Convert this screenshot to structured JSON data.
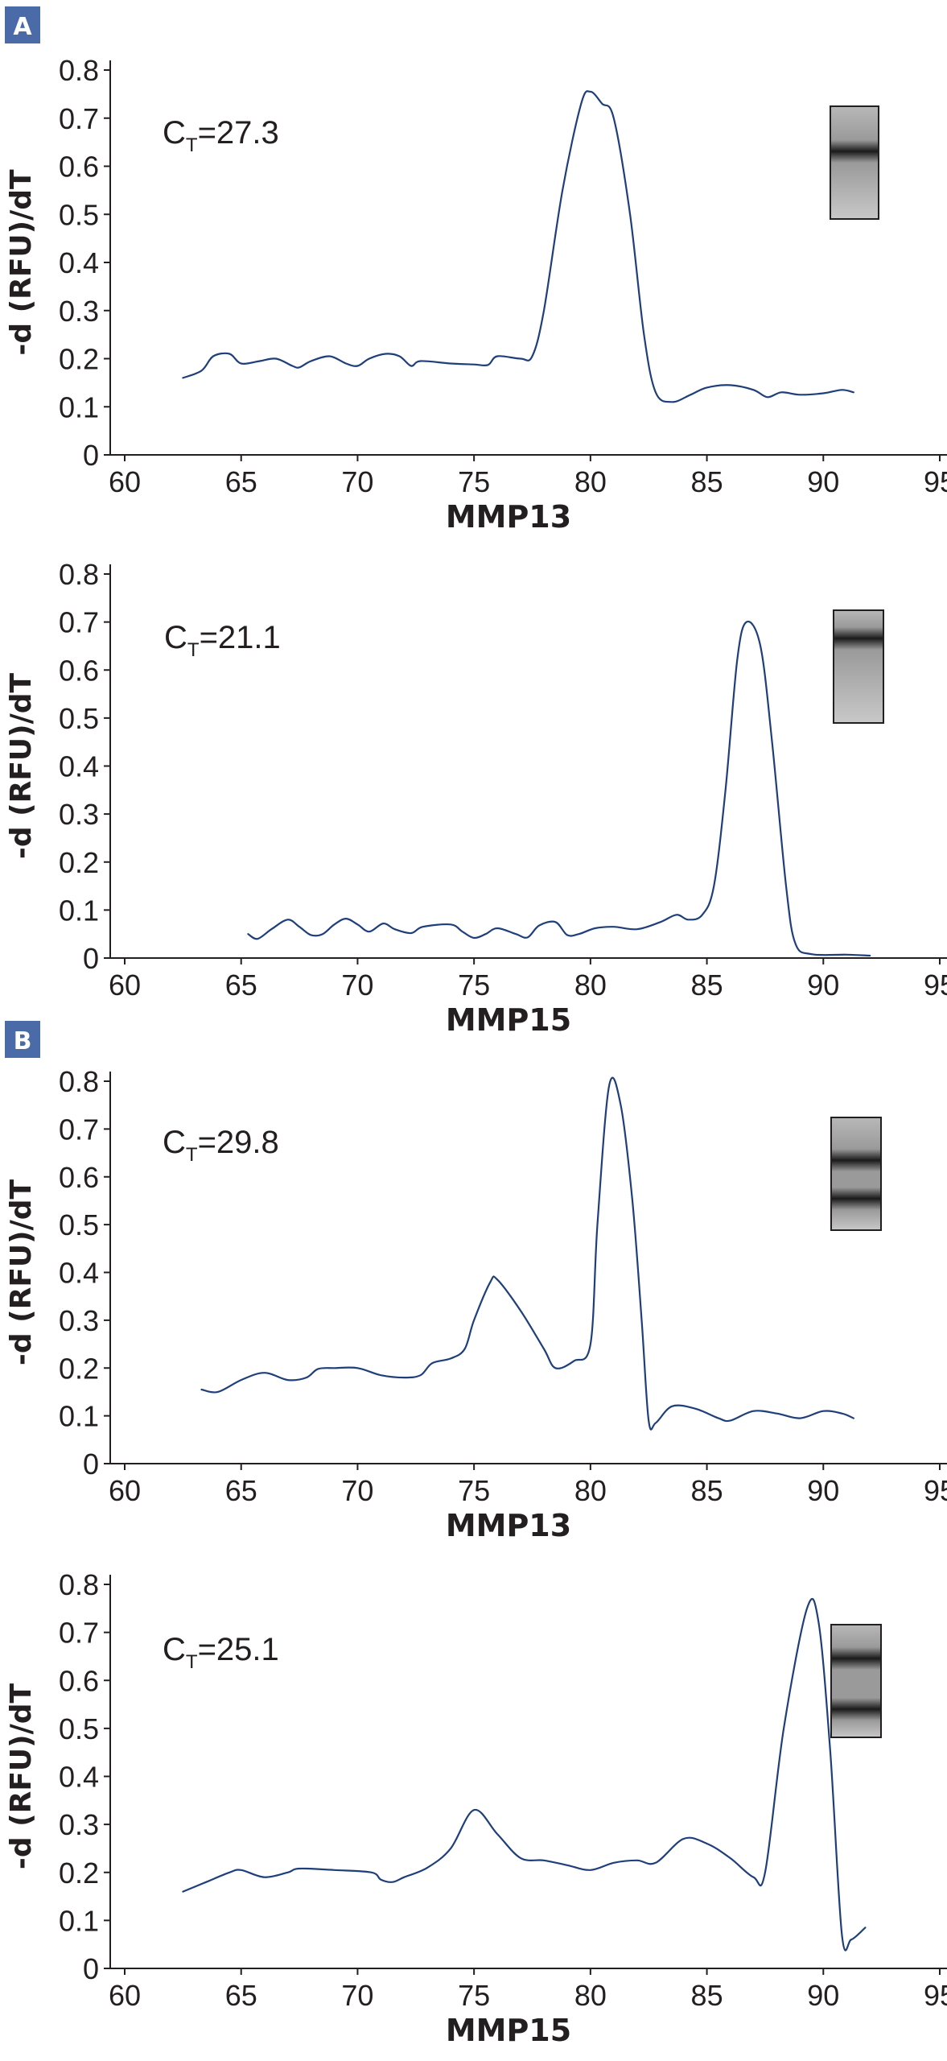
{
  "colors": {
    "curve": "#1f3f7a",
    "panel_label_bg": "#4a6aa8",
    "axis": "#231f20"
  },
  "chart_data": [
    {
      "type": "line",
      "panel": "A",
      "ylabel": "-d (RFU)/dT",
      "xlabel": "MMP13",
      "ct_label": {
        "main": "C",
        "sub": "T",
        "rest": "=27.3"
      },
      "xlim": [
        60,
        95
      ],
      "ylim": [
        0,
        0.8
      ],
      "xticks": [
        60,
        65,
        70,
        75,
        80,
        85,
        90,
        95
      ],
      "yticks": [
        0,
        0.1,
        0.2,
        0.3,
        0.4,
        0.5,
        0.6,
        0.7,
        0.8
      ],
      "gel_bands": [
        0.4
      ],
      "series": [
        {
          "points": [
            [
              62.5,
              0.16
            ],
            [
              63.3,
              0.175
            ],
            [
              63.8,
              0.205
            ],
            [
              64.5,
              0.21
            ],
            [
              65,
              0.19
            ],
            [
              65.8,
              0.195
            ],
            [
              66.5,
              0.2
            ],
            [
              67.2,
              0.185
            ],
            [
              67.5,
              0.182
            ],
            [
              68,
              0.195
            ],
            [
              68.8,
              0.205
            ],
            [
              69.5,
              0.19
            ],
            [
              70,
              0.185
            ],
            [
              70.5,
              0.2
            ],
            [
              71.2,
              0.21
            ],
            [
              71.8,
              0.205
            ],
            [
              72.3,
              0.185
            ],
            [
              72.7,
              0.195
            ],
            [
              74,
              0.19
            ],
            [
              75,
              0.188
            ],
            [
              75.6,
              0.187
            ],
            [
              76,
              0.205
            ],
            [
              77,
              0.2
            ],
            [
              77.5,
              0.205
            ],
            [
              78,
              0.3
            ],
            [
              78.8,
              0.55
            ],
            [
              79.6,
              0.73
            ],
            [
              80,
              0.755
            ],
            [
              80.5,
              0.73
            ],
            [
              81,
              0.7
            ],
            [
              81.7,
              0.5
            ],
            [
              82.3,
              0.25
            ],
            [
              82.8,
              0.13
            ],
            [
              83.5,
              0.11
            ],
            [
              84.3,
              0.125
            ],
            [
              85,
              0.14
            ],
            [
              86,
              0.145
            ],
            [
              87,
              0.135
            ],
            [
              87.6,
              0.12
            ],
            [
              88.2,
              0.13
            ],
            [
              89,
              0.125
            ],
            [
              90,
              0.128
            ],
            [
              90.8,
              0.135
            ],
            [
              91.3,
              0.13
            ]
          ]
        }
      ]
    },
    {
      "type": "line",
      "panel": "",
      "ylabel": "-d (RFU)/dT",
      "xlabel": "MMP15",
      "ct_label": {
        "main": "C",
        "sub": "T",
        "rest": "=21.1"
      },
      "xlim": [
        60,
        95
      ],
      "ylim": [
        0,
        0.8
      ],
      "xticks": [
        60,
        65,
        70,
        75,
        80,
        85,
        90,
        95
      ],
      "yticks": [
        0,
        0.1,
        0.2,
        0.3,
        0.4,
        0.5,
        0.6,
        0.7,
        0.8
      ],
      "gel_bands": [
        0.25
      ],
      "series": [
        {
          "points": [
            [
              65.3,
              0.05
            ],
            [
              65.7,
              0.04
            ],
            [
              66.3,
              0.06
            ],
            [
              67,
              0.08
            ],
            [
              67.5,
              0.065
            ],
            [
              68,
              0.048
            ],
            [
              68.5,
              0.05
            ],
            [
              69,
              0.07
            ],
            [
              69.5,
              0.082
            ],
            [
              70,
              0.07
            ],
            [
              70.5,
              0.055
            ],
            [
              71.1,
              0.072
            ],
            [
              71.6,
              0.06
            ],
            [
              72.3,
              0.052
            ],
            [
              72.8,
              0.065
            ],
            [
              74,
              0.07
            ],
            [
              74.5,
              0.055
            ],
            [
              75,
              0.042
            ],
            [
              75.5,
              0.05
            ],
            [
              76,
              0.062
            ],
            [
              76.8,
              0.05
            ],
            [
              77.3,
              0.043
            ],
            [
              77.8,
              0.068
            ],
            [
              78.5,
              0.075
            ],
            [
              79,
              0.048
            ],
            [
              79.5,
              0.05
            ],
            [
              80.2,
              0.062
            ],
            [
              81,
              0.065
            ],
            [
              82,
              0.06
            ],
            [
              83,
              0.075
            ],
            [
              83.7,
              0.09
            ],
            [
              84.2,
              0.08
            ],
            [
              84.8,
              0.09
            ],
            [
              85.3,
              0.15
            ],
            [
              85.8,
              0.35
            ],
            [
              86.3,
              0.62
            ],
            [
              86.7,
              0.7
            ],
            [
              87.3,
              0.65
            ],
            [
              87.8,
              0.45
            ],
            [
              88.4,
              0.15
            ],
            [
              88.8,
              0.03
            ],
            [
              89.5,
              0.008
            ],
            [
              91,
              0.007
            ],
            [
              92,
              0.005
            ]
          ]
        }
      ]
    },
    {
      "type": "line",
      "panel": "B",
      "ylabel": "-d (RFU)/dT",
      "xlabel": "MMP13",
      "ct_label": {
        "main": "C",
        "sub": "T",
        "rest": "=29.8"
      },
      "xlim": [
        60,
        95
      ],
      "ylim": [
        0,
        0.8
      ],
      "xticks": [
        60,
        65,
        70,
        75,
        80,
        85,
        90,
        95
      ],
      "yticks": [
        0,
        0.1,
        0.2,
        0.3,
        0.4,
        0.5,
        0.6,
        0.7,
        0.8
      ],
      "gel_bands": [
        0.38,
        0.72
      ],
      "series": [
        {
          "points": [
            [
              63.3,
              0.155
            ],
            [
              64,
              0.15
            ],
            [
              65,
              0.175
            ],
            [
              66,
              0.19
            ],
            [
              67,
              0.175
            ],
            [
              67.8,
              0.18
            ],
            [
              68.3,
              0.198
            ],
            [
              69,
              0.2
            ],
            [
              70,
              0.2
            ],
            [
              71,
              0.185
            ],
            [
              72,
              0.18
            ],
            [
              72.7,
              0.185
            ],
            [
              73.2,
              0.21
            ],
            [
              74,
              0.22
            ],
            [
              74.6,
              0.24
            ],
            [
              75,
              0.3
            ],
            [
              75.7,
              0.38
            ],
            [
              76,
              0.385
            ],
            [
              77,
              0.32
            ],
            [
              78,
              0.24
            ],
            [
              78.5,
              0.2
            ],
            [
              79.3,
              0.215
            ],
            [
              80,
              0.25
            ],
            [
              80.3,
              0.5
            ],
            [
              80.8,
              0.79
            ],
            [
              81.3,
              0.75
            ],
            [
              81.8,
              0.55
            ],
            [
              82.2,
              0.3
            ],
            [
              82.5,
              0.09
            ],
            [
              82.8,
              0.085
            ],
            [
              83.5,
              0.12
            ],
            [
              84.5,
              0.115
            ],
            [
              85.5,
              0.095
            ],
            [
              86,
              0.09
            ],
            [
              87,
              0.11
            ],
            [
              88,
              0.105
            ],
            [
              89,
              0.095
            ],
            [
              90,
              0.11
            ],
            [
              90.8,
              0.105
            ],
            [
              91.3,
              0.095
            ]
          ]
        }
      ]
    },
    {
      "type": "line",
      "panel": "",
      "ylabel": "-d (RFU)/dT",
      "xlabel": "MMP15",
      "ct_label": {
        "main": "C",
        "sub": "T",
        "rest": "=25.1"
      },
      "xlim": [
        60,
        95
      ],
      "ylim": [
        0,
        0.8
      ],
      "xticks": [
        60,
        65,
        70,
        75,
        80,
        85,
        90,
        95
      ],
      "yticks": [
        0,
        0.1,
        0.2,
        0.3,
        0.4,
        0.5,
        0.6,
        0.7,
        0.8
      ],
      "gel_bands": [
        0.3,
        0.75
      ],
      "series": [
        {
          "points": [
            [
              62.5,
              0.16
            ],
            [
              63.5,
              0.18
            ],
            [
              64.5,
              0.2
            ],
            [
              65,
              0.205
            ],
            [
              66,
              0.19
            ],
            [
              67,
              0.2
            ],
            [
              67.5,
              0.208
            ],
            [
              69,
              0.205
            ],
            [
              70.6,
              0.2
            ],
            [
              71,
              0.185
            ],
            [
              71.5,
              0.18
            ],
            [
              72,
              0.19
            ],
            [
              73,
              0.21
            ],
            [
              74,
              0.25
            ],
            [
              75,
              0.33
            ],
            [
              76,
              0.28
            ],
            [
              77,
              0.23
            ],
            [
              78,
              0.225
            ],
            [
              79,
              0.215
            ],
            [
              80,
              0.205
            ],
            [
              81,
              0.22
            ],
            [
              82,
              0.225
            ],
            [
              82.8,
              0.22
            ],
            [
              84,
              0.27
            ],
            [
              85,
              0.26
            ],
            [
              86,
              0.23
            ],
            [
              87,
              0.19
            ],
            [
              87.5,
              0.2
            ],
            [
              88.3,
              0.5
            ],
            [
              89.3,
              0.75
            ],
            [
              89.8,
              0.72
            ],
            [
              90.3,
              0.45
            ],
            [
              90.8,
              0.07
            ],
            [
              91.2,
              0.06
            ],
            [
              91.8,
              0.085
            ]
          ]
        }
      ]
    }
  ]
}
